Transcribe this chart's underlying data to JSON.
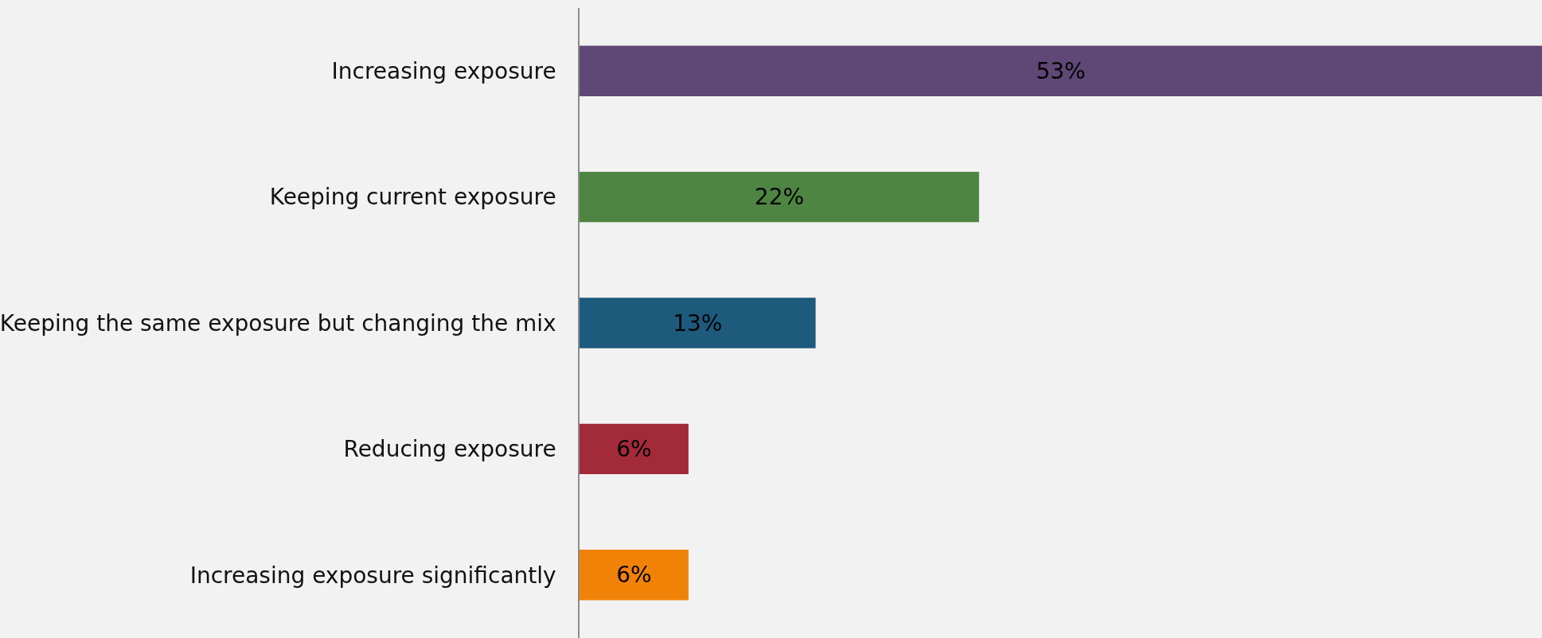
{
  "chart_data": {
    "type": "bar",
    "orientation": "horizontal",
    "categories": [
      "Increasing exposure",
      "Keeping current exposure",
      "Keeping the same exposure but changing the mix",
      "Reducing exposure",
      "Increasing exposure significantly"
    ],
    "values": [
      53,
      22,
      13,
      6,
      6
    ],
    "value_labels": [
      "53%",
      "22%",
      "13%",
      "6%",
      "6%"
    ],
    "colors": [
      "#5f4776",
      "#4e8542",
      "#1d5a7c",
      "#a32a38",
      "#f08208"
    ],
    "xlim": [
      0,
      53
    ],
    "tick_labels": "y",
    "grid": false,
    "legend": false
  }
}
